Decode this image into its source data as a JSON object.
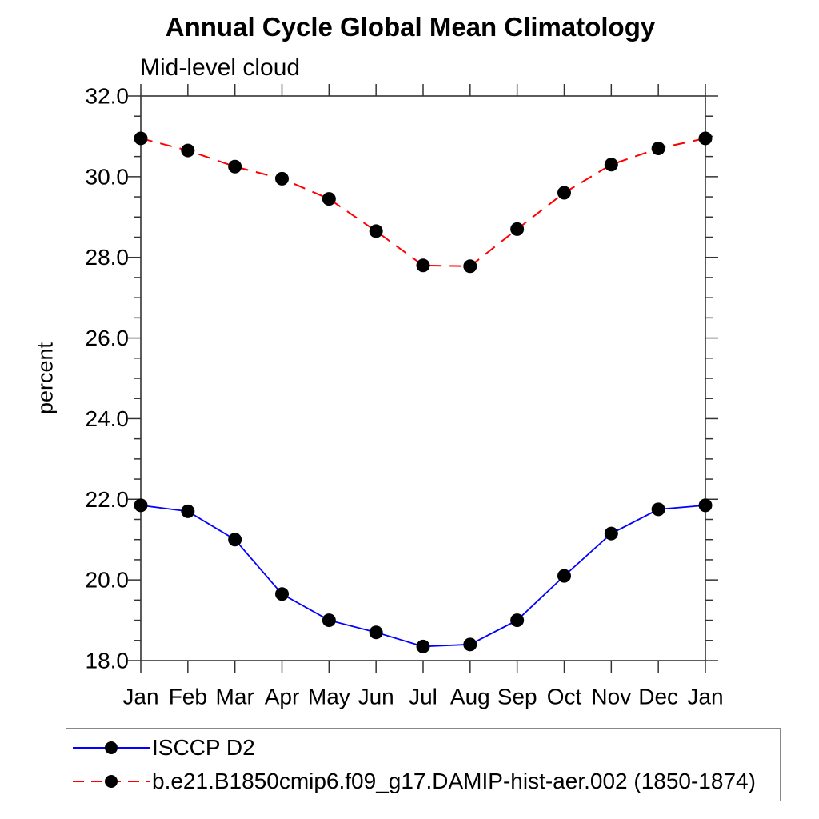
{
  "page": {
    "background": "#ffffff"
  },
  "chart_data": {
    "type": "line",
    "title": "Annual Cycle Global Mean Climatology",
    "subtitle": "Mid-level cloud",
    "xlabel": "",
    "ylabel": "percent",
    "categories": [
      "Jan",
      "Feb",
      "Mar",
      "Apr",
      "May",
      "Jun",
      "Jul",
      "Aug",
      "Sep",
      "Oct",
      "Nov",
      "Dec",
      "Jan"
    ],
    "ylim": [
      18.0,
      32.0
    ],
    "ytick_values": [
      18,
      20,
      22,
      24,
      26,
      28,
      30,
      32
    ],
    "ytick_labels": [
      "18.0",
      "20.0",
      "22.0",
      "24.0",
      "26.0",
      "28.0",
      "30.0",
      "32.0"
    ],
    "ytick_step": 2.0,
    "yminor_step": 0.5,
    "grid": false,
    "frame_color": "#333333",
    "text_color": "#000000",
    "legend_position": "bottom-left-box",
    "series": [
      {
        "name": "ISCCP D2",
        "color": "#0000ff",
        "line_style": "solid",
        "marker": "filled-circle",
        "marker_color": "#000000",
        "values": [
          21.85,
          21.7,
          21.0,
          19.65,
          19.0,
          18.7,
          18.35,
          18.4,
          19.0,
          20.1,
          21.15,
          21.75,
          21.85
        ]
      },
      {
        "name": "b.e21.B1850cmip6.f09_g17.DAMIP-hist-aer.002 (1850-1874)",
        "color": "#ff0000",
        "line_style": "dashed",
        "marker": "filled-circle",
        "marker_color": "#000000",
        "values": [
          30.95,
          30.65,
          30.25,
          29.95,
          29.45,
          28.65,
          27.8,
          27.78,
          28.7,
          29.6,
          30.3,
          30.7,
          30.95
        ]
      }
    ]
  }
}
